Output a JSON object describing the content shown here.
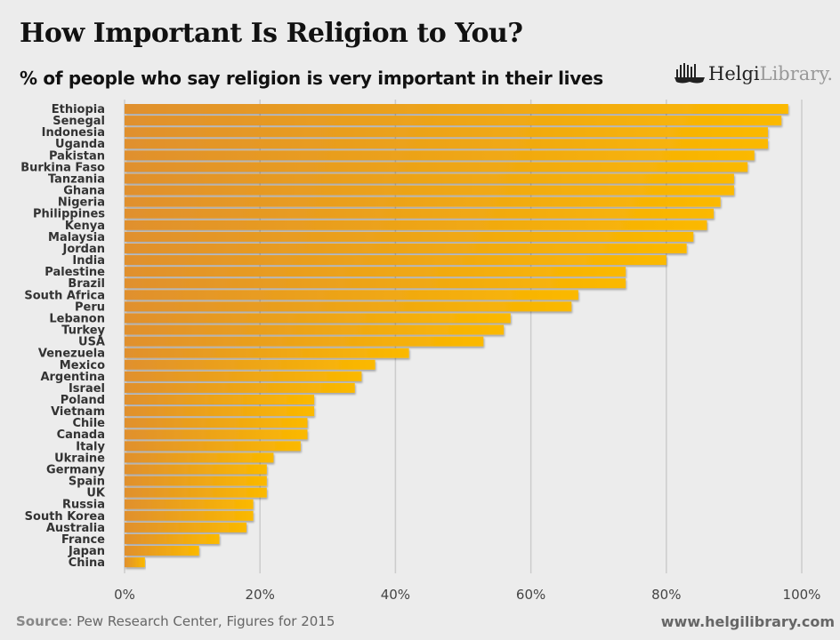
{
  "chart_data": {
    "type": "bar",
    "orientation": "horizontal",
    "title": "How Important Is Religion to You?",
    "subtitle": "% of people who say religion is very important in their lives",
    "xlabel": "",
    "ylabel": "",
    "xlim": [
      0,
      100
    ],
    "xticks": [
      "0%",
      "20%",
      "40%",
      "60%",
      "80%",
      "100%"
    ],
    "grid": true,
    "categories": [
      "Ethiopia",
      "Senegal",
      "Indonesia",
      "Uganda",
      "Pakistan",
      "Burkina Faso",
      "Tanzania",
      "Ghana",
      "Nigeria",
      "Philippines",
      "Kenya",
      "Malaysia",
      "Jordan",
      "India",
      "Palestine",
      "Brazil",
      "South Africa",
      "Peru",
      "Lebanon",
      "Turkey",
      "USA",
      "Venezuela",
      "Mexico",
      "Argentina",
      "Israel",
      "Poland",
      "Vietnam",
      "Chile",
      "Canada",
      "Italy",
      "Ukraine",
      "Germany",
      "Spain",
      "UK",
      "Russia",
      "South Korea",
      "Australia",
      "France",
      "Japan",
      "China"
    ],
    "values": [
      98,
      97,
      95,
      95,
      93,
      92,
      90,
      90,
      88,
      87,
      86,
      84,
      83,
      80,
      74,
      74,
      67,
      66,
      57,
      56,
      53,
      42,
      37,
      35,
      34,
      28,
      28,
      27,
      27,
      26,
      22,
      21,
      21,
      21,
      19,
      19,
      18,
      14,
      11,
      3
    ],
    "colors": {
      "bar_start": "#e0902e",
      "bar_end": "#fbb900",
      "grid": "#cccccc"
    }
  },
  "logo": {
    "brand_dark": "Helgi",
    "brand_light": "Library."
  },
  "footer": {
    "source_label": "Source",
    "source_text": ": Pew Research Center, Figures for 2015",
    "url": "www.helgilibrary.com"
  }
}
